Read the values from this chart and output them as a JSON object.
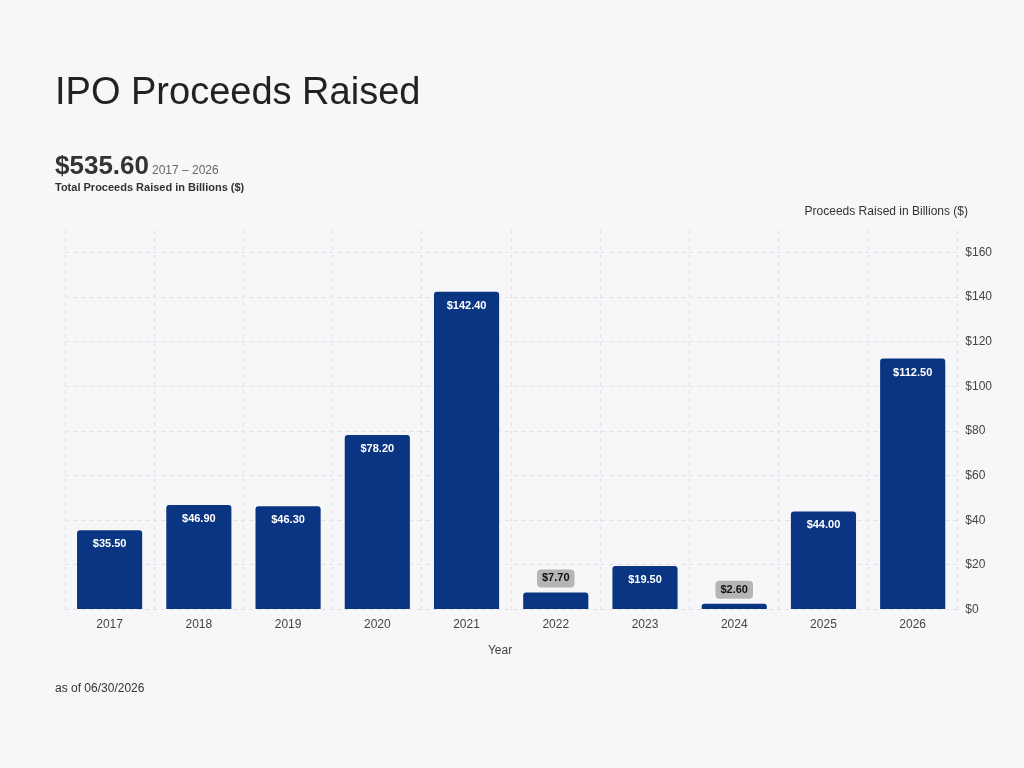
{
  "chart_data": {
    "type": "bar",
    "title": "IPO Proceeds Raised",
    "subtitle": "Total Proceeds Raised in Billions ($)",
    "xlabel": "Year",
    "ylabel": "Proceeds Raised in Billions ($)",
    "annotations": [
      "$535.60",
      "2017 – 2026",
      "as of 06/30/2026"
    ],
    "categories": [
      "2017",
      "2018",
      "2019",
      "2020",
      "2021",
      "2022",
      "2023",
      "2024",
      "2025",
      "2026"
    ],
    "values": [
      35.5,
      46.9,
      46.3,
      78.2,
      142.4,
      7.7,
      19.5,
      2.6,
      44.0,
      112.5
    ],
    "value_labels": [
      "$35.50",
      "$46.90",
      "$46.30",
      "$78.20",
      "$142.40",
      "$7.70",
      "$19.50",
      "$2.60",
      "$44.00",
      "$112.50"
    ],
    "color": "#0a3582",
    "ylim": [
      0,
      170
    ],
    "yticks": [
      {
        "value": 0,
        "label": "$0"
      },
      {
        "value": 20,
        "label": "$20"
      },
      {
        "value": 40,
        "label": "$40"
      },
      {
        "value": 60,
        "label": "$60"
      },
      {
        "value": 80,
        "label": "$80"
      },
      {
        "value": 100,
        "label": "$100"
      },
      {
        "value": 120,
        "label": "$120"
      },
      {
        "value": 140,
        "label": "$140"
      },
      {
        "value": 160,
        "label": "$160"
      }
    ],
    "grid": true
  }
}
